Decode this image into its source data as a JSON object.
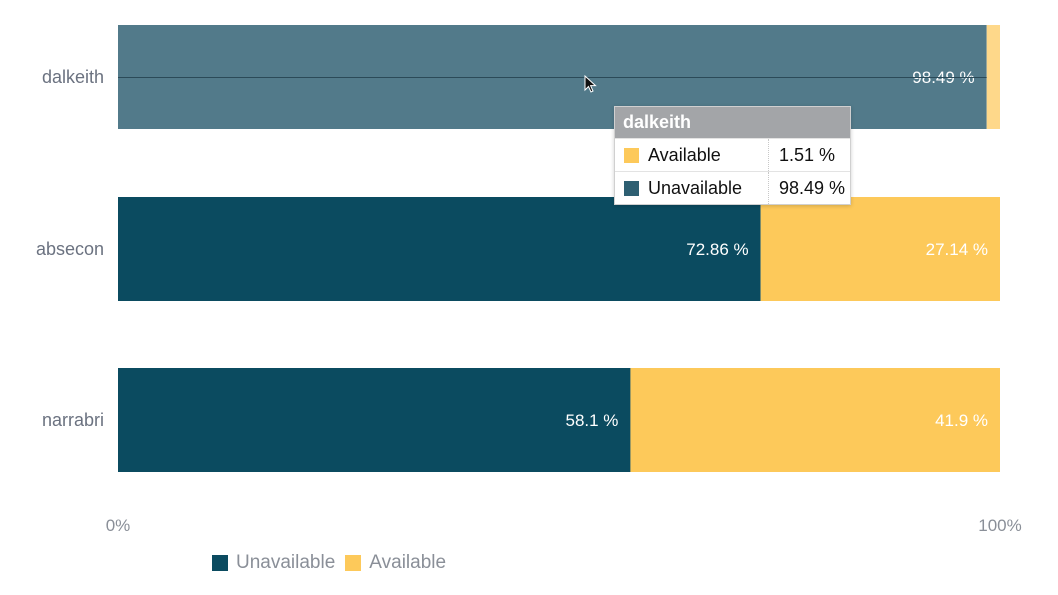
{
  "chart_data": {
    "type": "bar",
    "orientation": "horizontal",
    "stacked": "percent",
    "categories": [
      "dalkeith",
      "absecon",
      "narrabri"
    ],
    "series": [
      {
        "name": "Unavailable",
        "color": "#0b4b60",
        "values": [
          98.49,
          72.86,
          58.1
        ],
        "labels": [
          "98.49 %",
          "72.86 %",
          "58.1 %"
        ]
      },
      {
        "name": "Available",
        "color": "#fdc95a",
        "values": [
          1.51,
          27.14,
          41.9
        ],
        "labels": [
          "",
          "27.14 %",
          "41.9 %"
        ]
      }
    ],
    "xlim": [
      0,
      100
    ],
    "x_ticks": [
      "0%",
      "100%"
    ],
    "legend_position": "bottom-left",
    "highlighted_category": "dalkeith"
  },
  "tooltip": {
    "title": "dalkeith",
    "rows": [
      {
        "name": "Available",
        "value": "1.51 %",
        "color": "#fdc95a"
      },
      {
        "name": "Unavailable",
        "value": "98.49 %",
        "color": "#2e5f72"
      }
    ]
  },
  "legend": {
    "items": [
      {
        "name": "Unavailable",
        "color": "#0b4b60"
      },
      {
        "name": "Available",
        "color": "#fdc95a"
      }
    ]
  },
  "cursor_icon": "mouse-pointer-icon"
}
